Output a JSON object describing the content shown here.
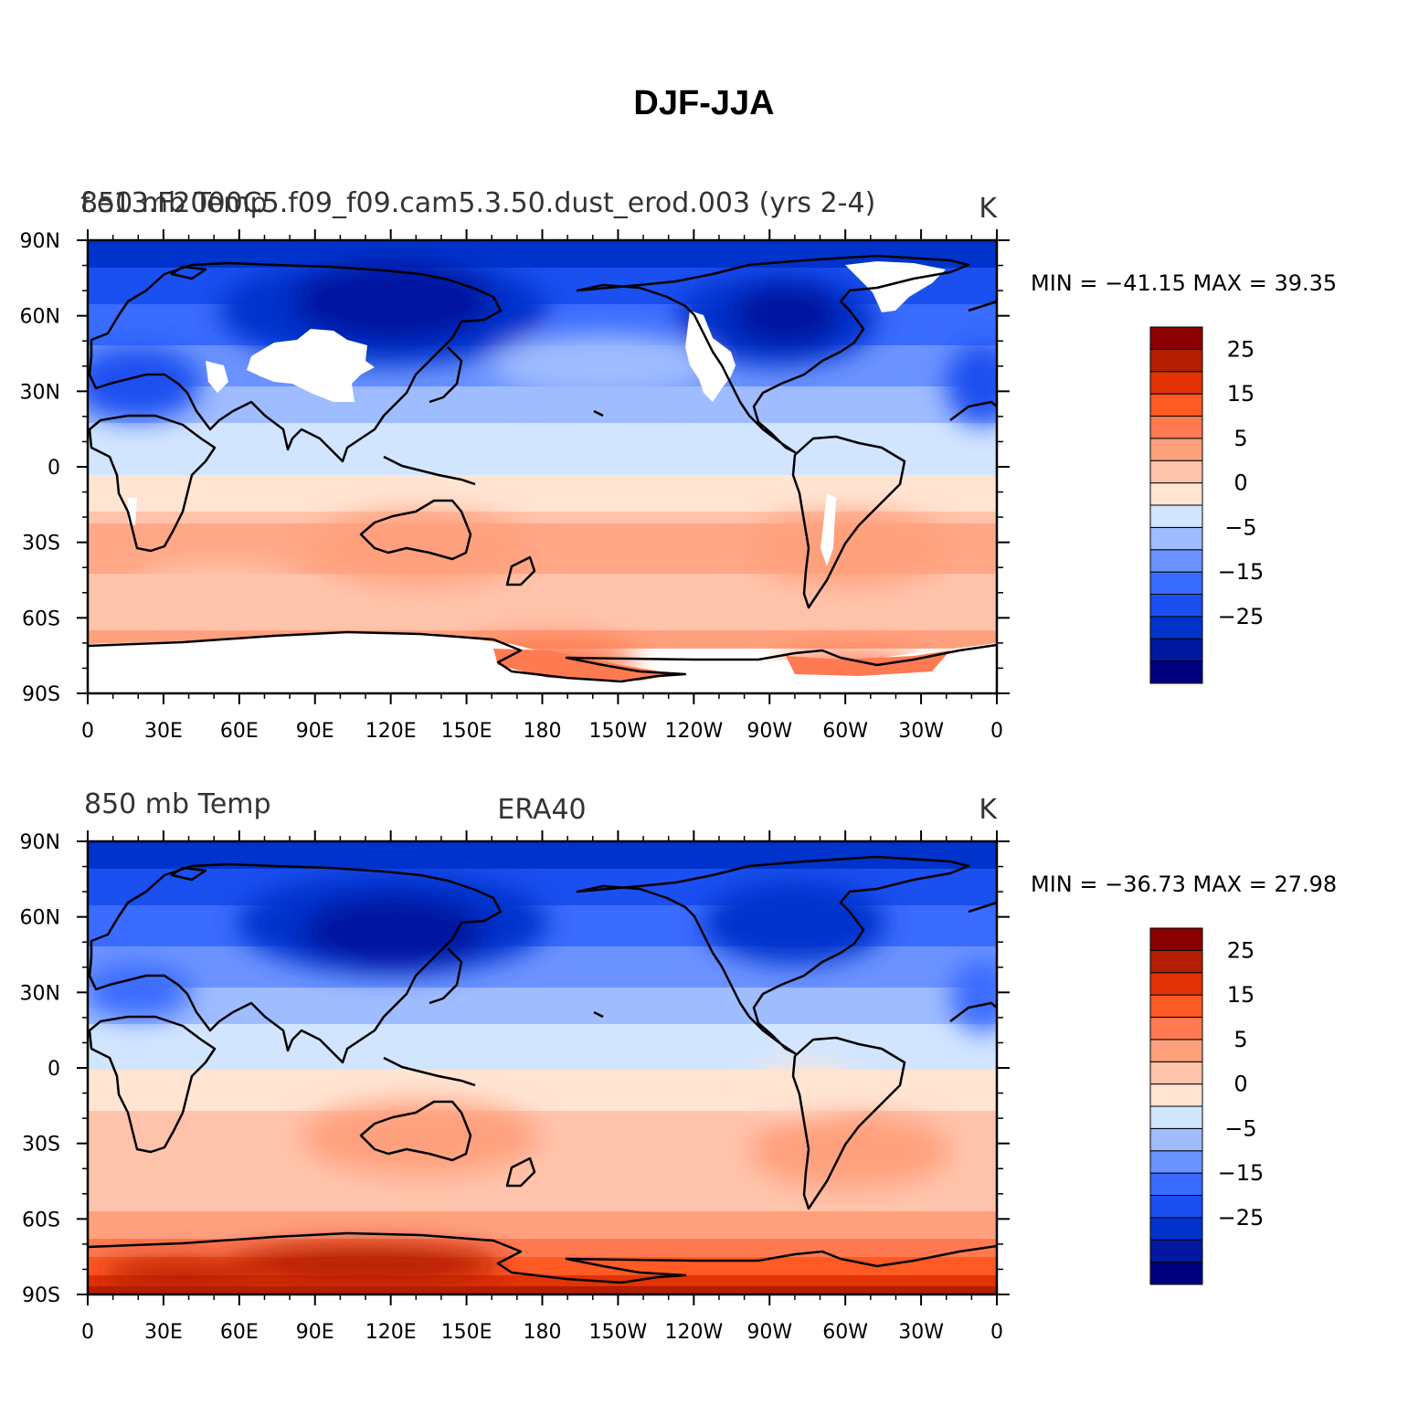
{
  "page": {
    "title": "DJF-JJA"
  },
  "legend_colors": [
    "#00007f",
    "#0019a0",
    "#0033cc",
    "#1a4ff0",
    "#3a6cff",
    "#6b93ff",
    "#9fbcff",
    "#d2e5ff",
    "#ffe4d2",
    "#ffc3ab",
    "#ffa07d",
    "#ff7a50",
    "#ff5a24",
    "#e23306",
    "#b41e00",
    "#8a0000"
  ],
  "legend_labels": [
    "25",
    "15",
    "5",
    "0",
    "−5",
    "−15",
    "−25"
  ],
  "lat_labels": [
    "90N",
    "60N",
    "30N",
    "0",
    "30S",
    "60S",
    "90S"
  ],
  "lon_labels": [
    "0",
    "30E",
    "60E",
    "90E",
    "120E",
    "150E",
    "180",
    "150W",
    "120W",
    "90W",
    "60W",
    "30W",
    "0"
  ],
  "panels": [
    {
      "left_title_a": "850 mb Temp",
      "left_title_b": "f.e13.F2000C5.f09_f09.cam5.3.50.dust_erod.003 (yrs 2-4)",
      "center_title": "",
      "units": "K",
      "stats": "MIN = −41.15  MAX =   39.35",
      "has_missing": true
    },
    {
      "left_title_a": "850 mb Temp",
      "left_title_b": "",
      "center_title": "ERA40",
      "units": "K",
      "stats": "MIN = −36.73  MAX =   27.98",
      "has_missing": false
    }
  ]
}
